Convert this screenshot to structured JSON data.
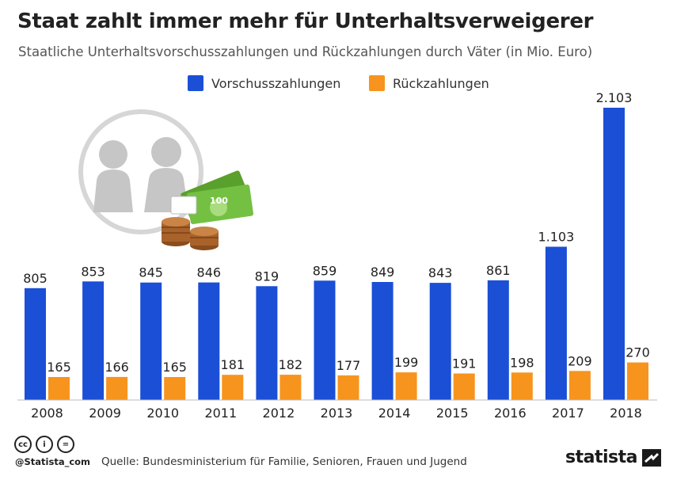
{
  "header": {
    "title": "Staat zahlt immer mehr für Unterhaltsverweigerer",
    "subtitle": "Staatliche Unterhaltsvorschusszahlungen und Rückzahlungen durch Väter (in Mio. Euro)"
  },
  "legend": {
    "items": [
      {
        "label": "Vorschusszahlungen",
        "color": "#1a4fd6"
      },
      {
        "label": "Rückzahlungen",
        "color": "#f7941d"
      }
    ]
  },
  "chart_data": {
    "type": "bar",
    "title": "Staat zahlt immer mehr für Unterhaltsverweigerer",
    "subtitle": "Staatliche Unterhaltsvorschusszahlungen und Rückzahlungen durch Väter (in Mio. Euro)",
    "categories": [
      "2008",
      "2009",
      "2010",
      "2011",
      "2012",
      "2013",
      "2014",
      "2015",
      "2016",
      "2017",
      "2018"
    ],
    "series": [
      {
        "name": "Vorschusszahlungen",
        "color": "#1a4fd6",
        "values": [
          805,
          853,
          845,
          846,
          819,
          859,
          849,
          843,
          861,
          1103,
          2103
        ],
        "labels": [
          "805",
          "853",
          "845",
          "846",
          "819",
          "859",
          "849",
          "843",
          "861",
          "1.103",
          "2.103"
        ]
      },
      {
        "name": "Rückzahlungen",
        "color": "#f7941d",
        "values": [
          165,
          166,
          165,
          181,
          182,
          177,
          199,
          191,
          198,
          209,
          270
        ],
        "labels": [
          "165",
          "166",
          "165",
          "181",
          "182",
          "177",
          "199",
          "191",
          "198",
          "209",
          "270"
        ]
      }
    ],
    "ylim": [
      0,
      2103
    ],
    "grid": false,
    "legend_position": "top-center"
  },
  "illustration": {
    "icons": [
      "children-icon",
      "euro-banknotes-icon",
      "coin-stack-icon"
    ],
    "banknote_text": "100"
  },
  "footer": {
    "license_icons": [
      "creative-commons-icon",
      "attribution-icon",
      "no-derivatives-icon"
    ],
    "license_glyphs": [
      "cc",
      "i",
      "="
    ],
    "attribution": "@Statista_com",
    "source": "Quelle: Bundesministerium für Familie, Senioren, Frauen und Jugend",
    "brand": "statista"
  }
}
